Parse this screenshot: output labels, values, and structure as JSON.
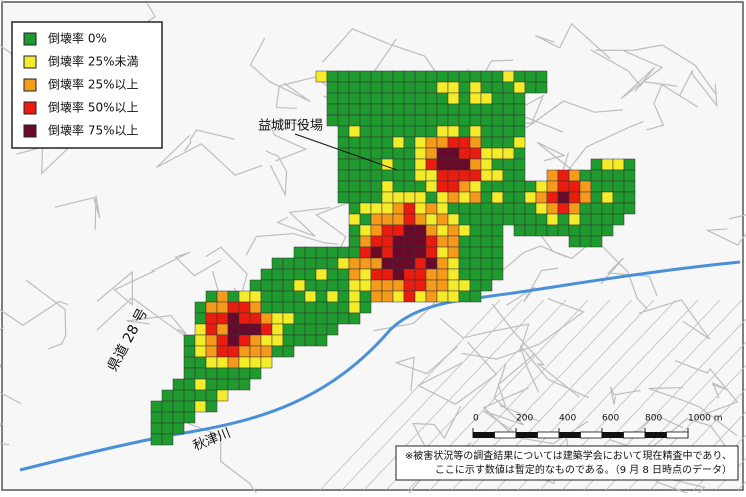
{
  "legend": {
    "items": [
      {
        "label": "倒壊率 0%",
        "color": "#1f9a2e"
      },
      {
        "label": "倒壊率 25%未満",
        "color": "#f4ec2a"
      },
      {
        "label": "倒壊率 25%以上",
        "color": "#f59a1b"
      },
      {
        "label": "倒壊率 50%以上",
        "color": "#ea1c10"
      },
      {
        "label": "倒壊率 75%以上",
        "color": "#6a0a2a"
      }
    ]
  },
  "labels": {
    "town_office": "益城町役場",
    "route": "県道 28 号",
    "river": "秋津川"
  },
  "scale": {
    "ticks": [
      0,
      200,
      400,
      600,
      800,
      {
        "value": 1000,
        "label": "1000 m"
      }
    ]
  },
  "note": {
    "lines": [
      "※被害状況等の調査結果については建築学会において現在精査中であり、",
      "ここに示す数値は暫定的なものである。（9 月 8 日時点のデータ）"
    ]
  }
}
